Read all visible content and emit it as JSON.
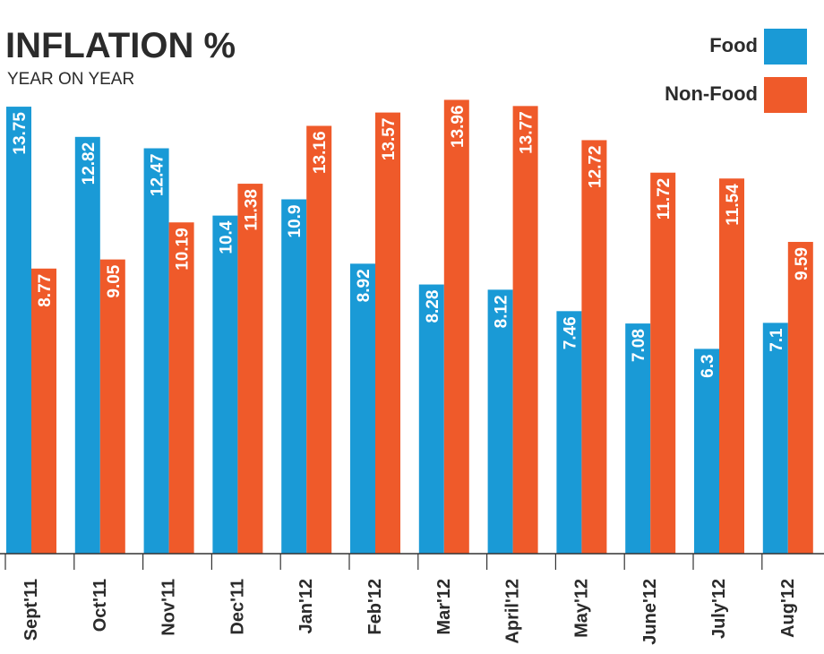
{
  "chart_data": {
    "type": "bar",
    "title": "INFLATION %",
    "subtitle": "YEAR ON YEAR",
    "categories": [
      "Sept'11",
      "Oct'11",
      "Nov'11",
      "Dec'11",
      "Jan'12",
      "Feb'12",
      "Mar'12",
      "April'12",
      "May'12",
      "June'12",
      "July'12",
      "Aug'12"
    ],
    "series": [
      {
        "name": "Food",
        "color": "#1a9ad6",
        "values": [
          13.75,
          12.82,
          12.47,
          10.4,
          10.9,
          8.92,
          8.28,
          8.12,
          7.46,
          7.08,
          6.3,
          7.1
        ]
      },
      {
        "name": "Non-Food",
        "color": "#ef5a2a",
        "values": [
          8.77,
          9.05,
          10.19,
          11.38,
          13.16,
          13.57,
          13.96,
          13.77,
          12.72,
          11.72,
          11.54,
          9.59
        ]
      }
    ],
    "value_labels": [
      [
        "13.75",
        "12.82",
        "12.47",
        "10.4",
        "10.9",
        "8.92",
        "8.28",
        "8.12",
        "7.46",
        "7.08",
        "6.3",
        "7.1"
      ],
      [
        "8.77",
        "9.05",
        "10.19",
        "11.38",
        "13.16",
        "13.57",
        "13.96",
        "13.77",
        "12.72",
        "11.72",
        "11.54",
        "9.59"
      ]
    ],
    "xlabel": "",
    "ylabel": "",
    "ylim": [
      0,
      14
    ],
    "grid": false,
    "legend": "top-right"
  }
}
